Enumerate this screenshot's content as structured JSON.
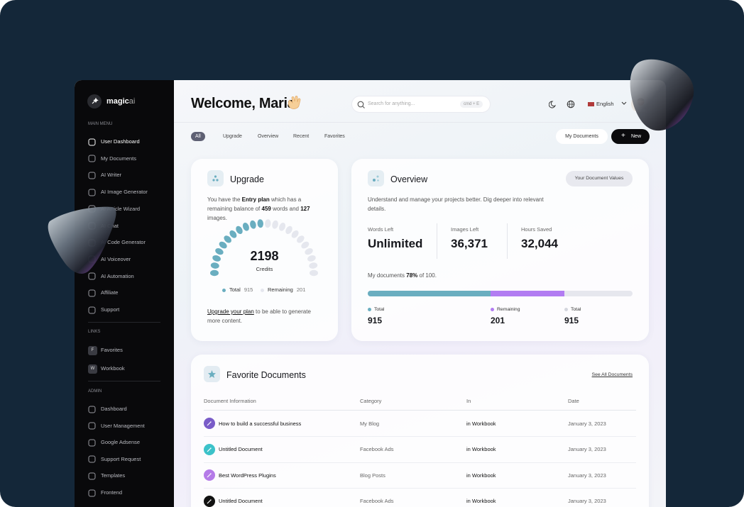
{
  "brand": {
    "name": "magic",
    "suffix": "ai"
  },
  "sidebar": {
    "main_menu": {
      "label": "MAIN MENU",
      "items": [
        "User Dashboard",
        "My Documents",
        "AI Writer",
        "AI Image Generator",
        "AI Article Wizard",
        "AI Chat",
        "AI Code Generator",
        "AI Voiceover",
        "AI Automation",
        "Affiliate",
        "Support"
      ]
    },
    "links": {
      "label": "LINKS",
      "items": [
        {
          "badge": "F",
          "label": "Favorites"
        },
        {
          "badge": "W",
          "label": "Workbook"
        }
      ]
    },
    "admin": {
      "label": "ADMIN",
      "items": [
        "Dashboard",
        "User Management",
        "Google Adsense",
        "Support Request",
        "Templates",
        "Frontend"
      ]
    }
  },
  "header": {
    "title": "Welcome, Maria",
    "search_placeholder": "Search for anything...",
    "shortcut": "cmd + E",
    "language": "English"
  },
  "tabs": [
    "All",
    "Upgrade",
    "Overview",
    "Recent",
    "Favorites"
  ],
  "buttons": {
    "documents": "My Documents",
    "new": "New"
  },
  "upgrade": {
    "title": "Upgrade",
    "description": [
      "You have the ",
      "Entry plan",
      " which has a remaining balance of ",
      "459",
      " words and ",
      "127",
      " images."
    ],
    "credits": "2198",
    "credits_label": "Credits",
    "legend": [
      {
        "name": "Total",
        "value": "915"
      },
      {
        "name": "Remaining",
        "value": "201"
      }
    ],
    "footer": [
      "Upgrade your plan",
      " to be able to generate more content."
    ]
  },
  "overview": {
    "title": "Overview",
    "button": "Your Document Values",
    "description": "Understand and manage your projects better. Dig deeper into relevant details.",
    "stats": [
      {
        "label": "Words Left",
        "value": "Unlimited"
      },
      {
        "label": "Images Left",
        "value": "36,371"
      },
      {
        "label": "Hours Saved",
        "value": "32,044"
      }
    ],
    "documents": [
      "My documents ",
      "78%",
      " of 100."
    ],
    "legend": [
      {
        "name": "Total",
        "value": "915",
        "color": "#6aaec0"
      },
      {
        "name": "Remaining",
        "value": "201",
        "color": "#b27cf2"
      },
      {
        "name": "Total",
        "value": "915",
        "color": "#d4d6de"
      }
    ]
  },
  "favorites": {
    "title": "Favorite Documents",
    "link": "See All Documents",
    "columns": [
      "Document Information",
      "Category",
      "In",
      "Date"
    ],
    "rows": [
      {
        "title": "How to build a successful business",
        "category": "My Blog",
        "folder": "in Workbook",
        "date": "January 3, 2023",
        "color": "#7a5cc8"
      },
      {
        "title": "Untitled Document",
        "category": "Facebook Ads",
        "folder": "in Workbook",
        "date": "January 3, 2023",
        "color": "#3cc2c9"
      },
      {
        "title": "Best WordPress Plugins",
        "category": "Blog Posts",
        "folder": "in Workbook",
        "date": "January 3, 2023",
        "color": "#b57be8"
      },
      {
        "title": "Untitled Document",
        "category": "Facebook Ads",
        "folder": "in Workbook",
        "date": "January 3, 2023",
        "color": "#111111"
      }
    ]
  }
}
